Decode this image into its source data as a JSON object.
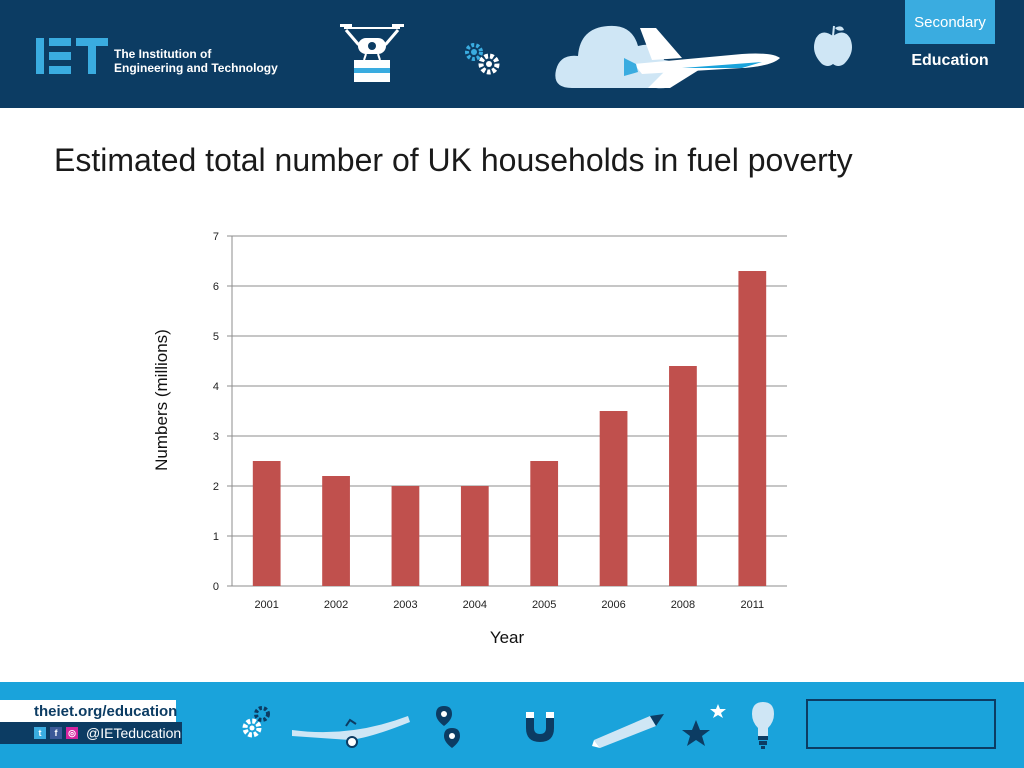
{
  "header": {
    "org_name_line1": "The Institution of",
    "org_name_line2": "Engineering and Technology",
    "badge_top": "Secondary",
    "badge_bottom": "Education",
    "bg_color": "#0c3c63",
    "accent_color": "#3aace0",
    "icons": [
      "iet-logo",
      "drone-icon",
      "gears-icon",
      "cloud-icon",
      "space-shuttle-icon",
      "apple-icon"
    ]
  },
  "footer": {
    "url": "theiet.org/education",
    "social_handle": "@IETeducation",
    "bg_color": "#1aa3db",
    "icons": [
      "twitter-icon",
      "facebook-icon",
      "instagram-icon",
      "gears-icon",
      "plane-icon",
      "location-pin-icon",
      "magnet-icon",
      "pencil-icon",
      "stars-icon",
      "lightbulb-icon"
    ]
  },
  "chart_data": {
    "type": "bar",
    "title": "Estimated total number of UK households in fuel poverty",
    "xlabel": "Year",
    "ylabel": "Numbers (millions)",
    "categories": [
      "2001",
      "2002",
      "2003",
      "2004",
      "2005",
      "2006",
      "2008",
      "2011"
    ],
    "values": [
      2.5,
      2.2,
      2.0,
      2.0,
      2.5,
      3.5,
      4.4,
      6.3
    ],
    "ylim": [
      0,
      7
    ],
    "yticks": [
      "0",
      "1",
      "2",
      "3",
      "4",
      "5",
      "6",
      "7"
    ],
    "grid": true,
    "bar_color": "#c0504d",
    "grid_color": "#8c8c8c"
  }
}
